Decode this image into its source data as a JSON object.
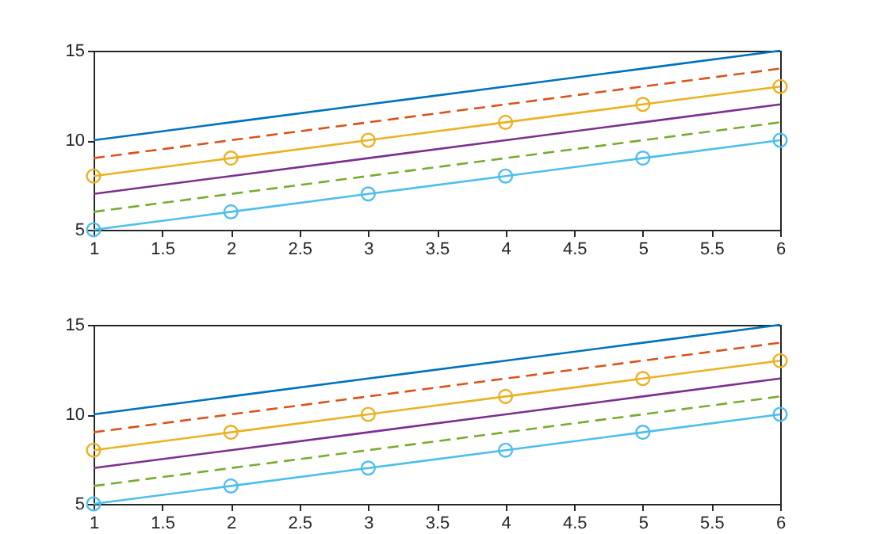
{
  "chart_data": [
    {
      "type": "line",
      "x": [
        1,
        2,
        3,
        4,
        5,
        6
      ],
      "xlim": [
        1,
        6
      ],
      "xticks": [
        1,
        1.5,
        2,
        2.5,
        3,
        3.5,
        4,
        4.5,
        5,
        5.5,
        6
      ],
      "ylim": [
        5,
        15
      ],
      "yticks": [
        5,
        10,
        15
      ],
      "grid": false,
      "series": [
        {
          "color": "#0072bd",
          "line_style": "solid",
          "marker": "none",
          "values": [
            10,
            11,
            12,
            13,
            14,
            15
          ]
        },
        {
          "color": "#d95319",
          "line_style": "dashed",
          "marker": "none",
          "values": [
            9,
            10,
            11,
            12,
            13,
            14
          ]
        },
        {
          "color": "#edb120",
          "line_style": "solid",
          "marker": "circle",
          "values": [
            8,
            9,
            10,
            11,
            12,
            13
          ]
        },
        {
          "color": "#7e2f8e",
          "line_style": "solid",
          "marker": "none",
          "values": [
            7,
            8,
            9,
            10,
            11,
            12
          ]
        },
        {
          "color": "#77ac30",
          "line_style": "dashed",
          "marker": "none",
          "values": [
            6,
            7,
            8,
            9,
            10,
            11
          ]
        },
        {
          "color": "#4dbeee",
          "line_style": "solid",
          "marker": "circle",
          "values": [
            5,
            6,
            7,
            8,
            9,
            10
          ]
        }
      ]
    },
    {
      "type": "line",
      "x": [
        1,
        2,
        3,
        4,
        5,
        6
      ],
      "xlim": [
        1,
        6
      ],
      "xticks": [
        1,
        1.5,
        2,
        2.5,
        3,
        3.5,
        4,
        4.5,
        5,
        5.5,
        6
      ],
      "ylim": [
        5,
        15
      ],
      "yticks": [
        5,
        10,
        15
      ],
      "grid": false,
      "series": [
        {
          "color": "#0072bd",
          "line_style": "solid",
          "marker": "none",
          "values": [
            10,
            11,
            12,
            13,
            14,
            15
          ]
        },
        {
          "color": "#d95319",
          "line_style": "dashed",
          "marker": "none",
          "values": [
            9,
            10,
            11,
            12,
            13,
            14
          ]
        },
        {
          "color": "#edb120",
          "line_style": "solid",
          "marker": "circle",
          "values": [
            8,
            9,
            10,
            11,
            12,
            13
          ]
        },
        {
          "color": "#7e2f8e",
          "line_style": "solid",
          "marker": "none",
          "values": [
            7,
            8,
            9,
            10,
            11,
            12
          ]
        },
        {
          "color": "#77ac30",
          "line_style": "dashed",
          "marker": "none",
          "values": [
            6,
            7,
            8,
            9,
            10,
            11
          ]
        },
        {
          "color": "#4dbeee",
          "line_style": "solid",
          "marker": "circle",
          "values": [
            5,
            6,
            7,
            8,
            9,
            10
          ]
        }
      ]
    }
  ]
}
